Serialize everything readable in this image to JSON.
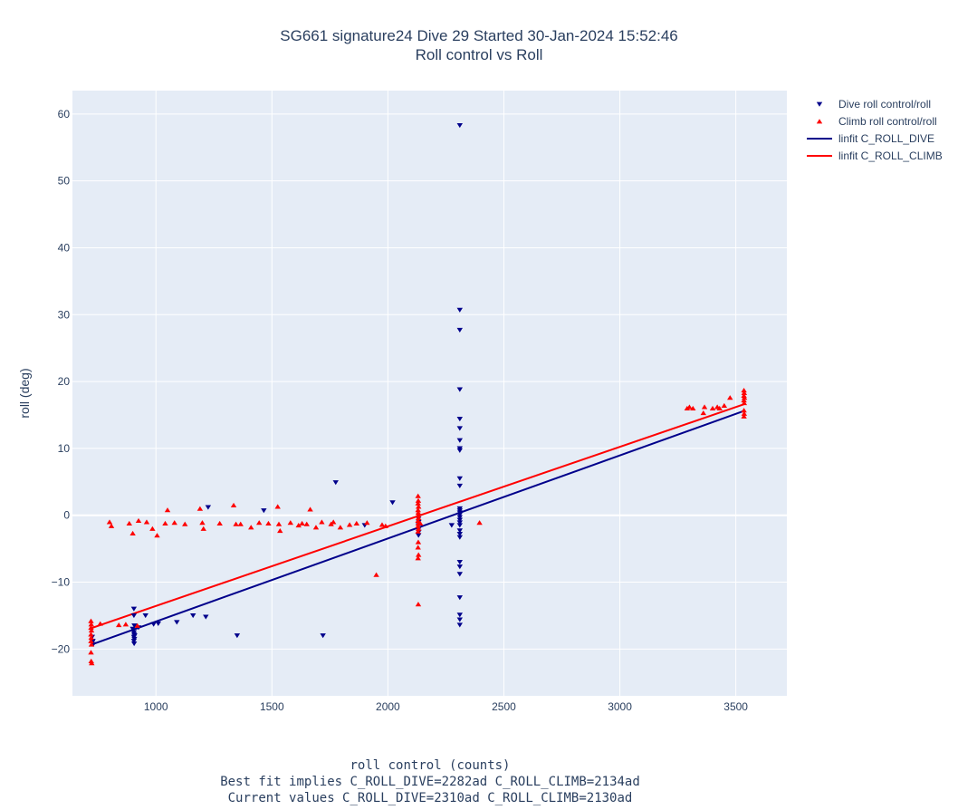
{
  "chart_data": {
    "type": "scatter",
    "title": "SG661 signature24 Dive 29 Started 30-Jan-2024 15:52:46",
    "subtitle": "Roll control vs Roll",
    "xlabel": "roll control (counts)",
    "xlabel_notes": [
      "Best fit implies C_ROLL_DIVE=2282ad C_ROLL_CLIMB=2134ad",
      "Current values C_ROLL_DIVE=2310ad C_ROLL_CLIMB=2130ad"
    ],
    "ylabel": "roll (deg)",
    "xlim": [
      640,
      3720
    ],
    "ylim": [
      -27,
      63.5
    ],
    "xticks": [
      1000,
      1500,
      2000,
      2500,
      3000,
      3500
    ],
    "xtick_labels": [
      "1000",
      "1500",
      "2000",
      "2500",
      "3000",
      "3500"
    ],
    "yticks": [
      -20,
      -10,
      0,
      10,
      20,
      30,
      40,
      50,
      60
    ],
    "ytick_labels": [
      "−20",
      "−10",
      "0",
      "10",
      "20",
      "30",
      "40",
      "50",
      "60"
    ],
    "grid": true,
    "legend_position": "top-right",
    "series": [
      {
        "name": "Dive roll control/roll",
        "kind": "markers",
        "marker": "triangle-down",
        "color": "#00008b",
        "points": [
          [
            725,
            -18.2
          ],
          [
            728,
            -18.8
          ],
          [
            730,
            -19.3
          ],
          [
            726,
            -19.0
          ],
          [
            905,
            -14.0
          ],
          [
            905,
            -15.0
          ],
          [
            907,
            -16.5
          ],
          [
            905,
            -17.5
          ],
          [
            906,
            -17.8
          ],
          [
            908,
            -18.0
          ],
          [
            905,
            -18.2
          ],
          [
            907,
            -18.5
          ],
          [
            905,
            -18.8
          ],
          [
            906,
            -19.2
          ],
          [
            900,
            -17.0
          ],
          [
            925,
            -16.8
          ],
          [
            955,
            -15.0
          ],
          [
            990,
            -16.3
          ],
          [
            1010,
            -16.2
          ],
          [
            1090,
            -16.0
          ],
          [
            1160,
            -15.0
          ],
          [
            1215,
            -15.2
          ],
          [
            1225,
            1.2
          ],
          [
            1350,
            -18.0
          ],
          [
            1465,
            0.7
          ],
          [
            1720,
            -18.0
          ],
          [
            1775,
            4.9
          ],
          [
            1900,
            -1.5
          ],
          [
            2020,
            1.9
          ],
          [
            2132,
            -0.5
          ],
          [
            2133,
            -1.0
          ],
          [
            2132,
            -1.5
          ],
          [
            2134,
            -2.0
          ],
          [
            2133,
            -2.5
          ],
          [
            2132,
            -3.0
          ],
          [
            2275,
            -1.5
          ],
          [
            2310,
            58.3
          ],
          [
            2310,
            30.7
          ],
          [
            2310,
            27.7
          ],
          [
            2310,
            18.8
          ],
          [
            2310,
            14.4
          ],
          [
            2310,
            13.0
          ],
          [
            2310,
            11.2
          ],
          [
            2310,
            10.0
          ],
          [
            2310,
            9.7
          ],
          [
            2310,
            5.5
          ],
          [
            2310,
            4.4
          ],
          [
            2310,
            1.0
          ],
          [
            2310,
            0.7
          ],
          [
            2310,
            0.4
          ],
          [
            2310,
            0.1
          ],
          [
            2310,
            -0.3
          ],
          [
            2310,
            -0.7
          ],
          [
            2310,
            -1.1
          ],
          [
            2310,
            -1.5
          ],
          [
            2310,
            -2.3
          ],
          [
            2310,
            -2.8
          ],
          [
            2310,
            -3.3
          ],
          [
            2310,
            -7.0
          ],
          [
            2310,
            -7.7
          ],
          [
            2310,
            -8.8
          ],
          [
            2310,
            -12.3
          ],
          [
            2310,
            -14.9
          ],
          [
            2310,
            -15.6
          ],
          [
            2310,
            -16.4
          ]
        ]
      },
      {
        "name": "Climb roll control/roll",
        "kind": "markers",
        "marker": "triangle-up",
        "color": "#ff0000",
        "points": [
          [
            720,
            -15.8
          ],
          [
            721,
            -16.3
          ],
          [
            720,
            -16.8
          ],
          [
            722,
            -17.2
          ],
          [
            720,
            -17.8
          ],
          [
            721,
            -18.3
          ],
          [
            720,
            -18.8
          ],
          [
            722,
            -19.3
          ],
          [
            720,
            -20.5
          ],
          [
            721,
            -21.8
          ],
          [
            723,
            -22.1
          ],
          [
            760,
            -16.2
          ],
          [
            800,
            -1.0
          ],
          [
            808,
            -1.6
          ],
          [
            840,
            -16.4
          ],
          [
            870,
            -16.3
          ],
          [
            885,
            -1.2
          ],
          [
            900,
            -2.7
          ],
          [
            920,
            -16.5
          ],
          [
            925,
            -0.8
          ],
          [
            960,
            -1.0
          ],
          [
            985,
            -2.0
          ],
          [
            1005,
            -3.0
          ],
          [
            1040,
            -1.2
          ],
          [
            1050,
            0.8
          ],
          [
            1080,
            -1.1
          ],
          [
            1125,
            -1.3
          ],
          [
            1190,
            1.0
          ],
          [
            1200,
            -1.1
          ],
          [
            1205,
            -2.0
          ],
          [
            1275,
            -1.2
          ],
          [
            1335,
            1.5
          ],
          [
            1345,
            -1.3
          ],
          [
            1365,
            -1.3
          ],
          [
            1410,
            -1.8
          ],
          [
            1445,
            -1.1
          ],
          [
            1485,
            -1.2
          ],
          [
            1525,
            1.3
          ],
          [
            1530,
            -1.3
          ],
          [
            1535,
            -2.3
          ],
          [
            1580,
            -1.1
          ],
          [
            1615,
            -1.5
          ],
          [
            1630,
            -1.2
          ],
          [
            1650,
            -1.3
          ],
          [
            1665,
            0.9
          ],
          [
            1690,
            -1.8
          ],
          [
            1715,
            -1.0
          ],
          [
            1755,
            -1.3
          ],
          [
            1765,
            -1.0
          ],
          [
            1795,
            -1.8
          ],
          [
            1835,
            -1.4
          ],
          [
            1865,
            -1.2
          ],
          [
            1910,
            -1.1
          ],
          [
            1950,
            -8.9
          ],
          [
            1975,
            -1.4
          ],
          [
            1990,
            -1.6
          ],
          [
            2130,
            2.9
          ],
          [
            2131,
            2.2
          ],
          [
            2130,
            1.8
          ],
          [
            2132,
            1.3
          ],
          [
            2130,
            0.8
          ],
          [
            2131,
            0.4
          ],
          [
            2130,
            0.0
          ],
          [
            2132,
            -0.4
          ],
          [
            2130,
            -0.8
          ],
          [
            2131,
            -1.2
          ],
          [
            2130,
            -1.6
          ],
          [
            2132,
            -2.0
          ],
          [
            2130,
            -2.4
          ],
          [
            2131,
            -4.0
          ],
          [
            2130,
            -4.8
          ],
          [
            2132,
            -5.9
          ],
          [
            2130,
            -6.4
          ],
          [
            2131,
            -13.3
          ],
          [
            2140,
            -1.2
          ],
          [
            2395,
            -1.1
          ],
          [
            3290,
            16.0
          ],
          [
            3300,
            16.2
          ],
          [
            3315,
            16.0
          ],
          [
            3360,
            15.3
          ],
          [
            3365,
            16.2
          ],
          [
            3400,
            16.0
          ],
          [
            3420,
            16.2
          ],
          [
            3430,
            16.0
          ],
          [
            3450,
            16.4
          ],
          [
            3475,
            17.6
          ],
          [
            3535,
            18.7
          ],
          [
            3536,
            18.3
          ],
          [
            3535,
            17.9
          ],
          [
            3537,
            17.6
          ],
          [
            3535,
            17.2
          ],
          [
            3536,
            16.8
          ],
          [
            3535,
            15.7
          ],
          [
            3536,
            15.2
          ],
          [
            3535,
            14.8
          ]
        ]
      },
      {
        "name": "linfit C_ROLL_DIVE",
        "kind": "line",
        "color": "#00008b",
        "points": [
          [
            725,
            -19.3
          ],
          [
            3535,
            15.6
          ]
        ]
      },
      {
        "name": "linfit C_ROLL_CLIMB",
        "kind": "line",
        "color": "#ff0000",
        "points": [
          [
            720,
            -16.9
          ],
          [
            3535,
            16.6
          ]
        ]
      }
    ]
  }
}
